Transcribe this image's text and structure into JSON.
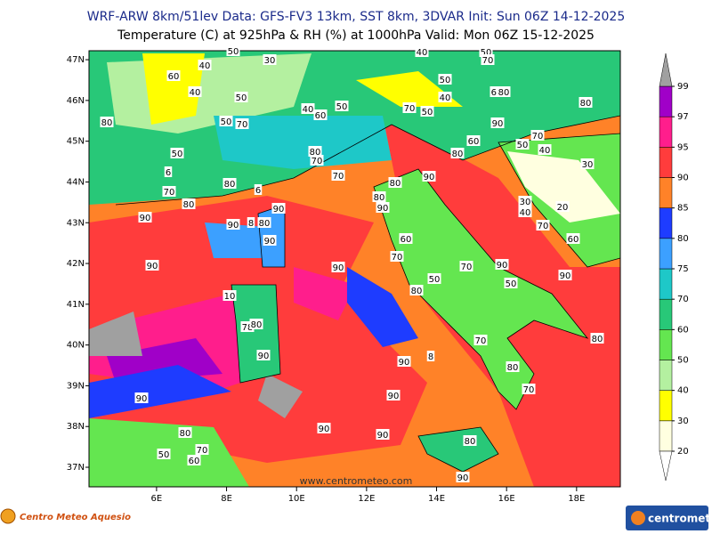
{
  "header": {
    "line1": "WRF-ARW 8km/51lev  Data: GFS-FV3 13km, SST 8km, 3DVAR  Init: Sun 06Z 14-12-2025",
    "line2": "Temperature (C) at 925hPa & RH (%) at 1000hPa  Valid: Mon 06Z 15-12-2025"
  },
  "map": {
    "xlim": [
      4.07,
      19.25
    ],
    "ylim": [
      36.52,
      47.22
    ],
    "xticks": [
      {
        "value": 6,
        "label": "6E"
      },
      {
        "value": 8,
        "label": "8E"
      },
      {
        "value": 10,
        "label": "10E"
      },
      {
        "value": 12,
        "label": "12E"
      },
      {
        "value": 14,
        "label": "14E"
      },
      {
        "value": 16,
        "label": "16E"
      },
      {
        "value": 18,
        "label": "18E"
      }
    ],
    "yticks": [
      {
        "value": 47,
        "label": "47N"
      },
      {
        "value": 46,
        "label": "46N"
      },
      {
        "value": 45,
        "label": "45N"
      },
      {
        "value": 44,
        "label": "44N"
      },
      {
        "value": 43,
        "label": "43N"
      },
      {
        "value": 42,
        "label": "42N"
      },
      {
        "value": 41,
        "label": "41N"
      },
      {
        "value": 40,
        "label": "40N"
      },
      {
        "value": 39,
        "label": "39N"
      },
      {
        "value": 38,
        "label": "38N"
      },
      {
        "value": 37,
        "label": "37N"
      }
    ],
    "contour_labels": [
      "50",
      "30",
      "40",
      "60",
      "40",
      "50",
      "70",
      "40",
      "50",
      "80",
      "60",
      "40",
      "50",
      "70",
      "50",
      "50",
      "40",
      "60",
      "80",
      "80",
      "90",
      "70",
      "50",
      "60",
      "50",
      "70",
      "40",
      "80",
      "70",
      "50",
      "80",
      "30",
      "6",
      "70",
      "90",
      "80",
      "80",
      "6",
      "70",
      "80",
      "80",
      "90",
      "30",
      "40",
      "20",
      "90",
      "90",
      "90",
      "80",
      "8",
      "90",
      "70",
      "60",
      "60",
      "70",
      "90",
      "90",
      "50",
      "70",
      "90",
      "50",
      "90",
      "80",
      "10",
      "78",
      "80",
      "70",
      "80",
      "90",
      "90",
      "8",
      "80",
      "70",
      "90",
      "90",
      "90",
      "90",
      "80",
      "70",
      "50",
      "60",
      "80",
      "90"
    ],
    "watermark": "www.centrometeo.com"
  },
  "colorbar": {
    "levels": [
      20,
      30,
      40,
      50,
      60,
      70,
      75,
      80,
      85,
      90,
      95,
      97,
      99
    ],
    "colors": [
      "#ffffe0",
      "#ffff00",
      "#b4f0a0",
      "#64e650",
      "#28c878",
      "#1ec8c8",
      "#3ca0ff",
      "#1e3cff",
      "#ff8228",
      "#ff3c3c",
      "#ff1e8c",
      "#a000c8"
    ],
    "over_color": "#a0a0a0"
  },
  "footer": {
    "left_logo": "Centro Meteo Aquesio",
    "right_logo": "centrometeo"
  }
}
